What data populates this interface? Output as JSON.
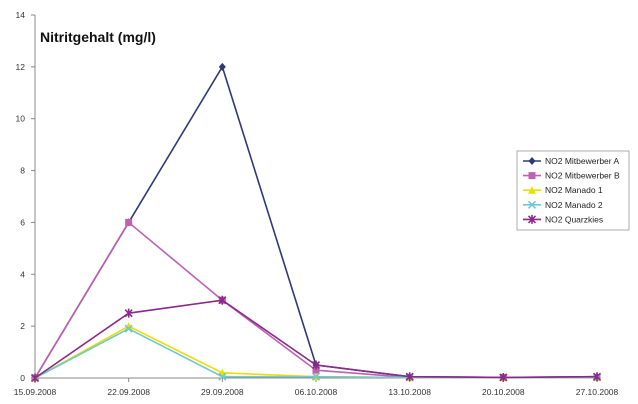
{
  "chart_data": {
    "type": "line",
    "title": "Nitritgehalt (mg/l)",
    "xlabel": "",
    "ylabel": "",
    "categories": [
      "15.09.2008",
      "22.09.2008",
      "29.09.2008",
      "06.10.2008",
      "13.10.2008",
      "20.10.2008",
      "27.10.2008"
    ],
    "ylim": [
      0,
      14
    ],
    "yticks": [
      0,
      2,
      4,
      6,
      8,
      10,
      12,
      14
    ],
    "grid": false,
    "legend": "right",
    "series": [
      {
        "name": "NO2 Mitbewerber A",
        "color": "#2e3a78",
        "marker": "diamond",
        "values": [
          0,
          6,
          12,
          0.5,
          0.05,
          0.02,
          0.05
        ]
      },
      {
        "name": "NO2 Mitbewerber B",
        "color": "#c060b0",
        "marker": "square",
        "values": [
          0,
          6,
          3,
          0.3,
          0.02,
          0.02,
          0.02
        ]
      },
      {
        "name": "NO2 Manado 1",
        "color": "#e8e000",
        "marker": "triangle",
        "values": [
          0,
          2,
          0.2,
          0.05,
          0.02,
          0.02,
          0.02
        ]
      },
      {
        "name": "NO2 Manado 2",
        "color": "#70c8d0",
        "marker": "x",
        "values": [
          0,
          1.9,
          0.05,
          0.05,
          0.02,
          0.02,
          0.02
        ]
      },
      {
        "name": "NO2 Quarzkies",
        "color": "#8a2a8a",
        "marker": "star",
        "values": [
          0,
          2.5,
          3,
          0.5,
          0.05,
          0.02,
          0.05
        ]
      }
    ]
  }
}
